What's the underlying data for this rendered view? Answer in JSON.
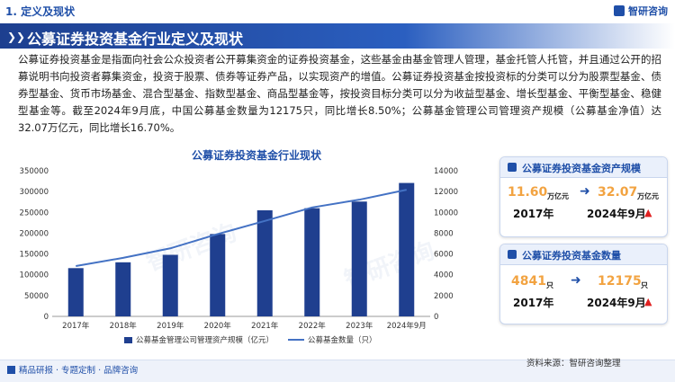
{
  "header": {
    "section_label": "1. 定义及现状",
    "brand": "智研咨询",
    "title": "公募证券投资基金行业定义及现状"
  },
  "paragraph": "公募证券投资基金是指面向社会公众投资者公开募集资金的证券投资基金，这些基金由基金管理人管理，基金托管人托管，并且通过公开的招募说明书向投资者募集资金，投资于股票、债券等证券产品，以实现资产的增值。公募证券投资基金按投资标的分类可以分为股票型基金、债券型基金、货币市场基金、混合型基金、指数型基金、商品型基金等，按投资目标分类可以分为收益型基金、增长型基金、平衡型基金、稳健型基金等。截至2024年9月底，中国公募基金数量为12175只，同比增长8.50%；公募基金管理公司管理资产规模（公募基金净值）达32.07万亿元，同比增长16.70%。",
  "chart_data": {
    "type": "bar",
    "title": "公募证券投资基金行业现状",
    "categories": [
      "2017年",
      "2018年",
      "2019年",
      "2020年",
      "2021年",
      "2022年",
      "2023年",
      "2024年9月"
    ],
    "series": [
      {
        "name": "公募基金管理公司管理资产规模（亿元）",
        "type": "bar",
        "axis": "left",
        "color": "#1f3f8f",
        "values": [
          116000,
          130000,
          148000,
          198000,
          255000,
          260000,
          276000,
          320700
        ]
      },
      {
        "name": "公募基金数量（只）",
        "type": "line",
        "axis": "right",
        "color": "#4472c4",
        "values": [
          4841,
          5626,
          6544,
          7913,
          9175,
          10474,
          11220,
          12175
        ]
      }
    ],
    "ylim": [
      0,
      350000
    ],
    "yticks": [
      0,
      50000,
      100000,
      150000,
      200000,
      250000,
      300000,
      350000
    ],
    "y2lim": [
      0,
      14000
    ],
    "y2ticks": [
      0,
      2000,
      4000,
      6000,
      8000,
      10000,
      12000,
      14000
    ],
    "legend_position": "bottom",
    "grid": false
  },
  "cards": [
    {
      "title": "公募证券投资基金资产规模",
      "from_value": "11.60",
      "from_unit": "万亿元",
      "from_label": "2017年",
      "to_value": "32.07",
      "to_unit": "万亿元",
      "to_label": "2024年9月"
    },
    {
      "title": "公募证券投资基金数量",
      "from_value": "4841",
      "from_unit": "只",
      "from_label": "2017年",
      "to_value": "12175",
      "to_unit": "只",
      "to_label": "2024年9月"
    }
  ],
  "footer": {
    "left": "精品研报 · 专题定制 · 品牌咨询",
    "source": "资料来源：智研咨询整理"
  },
  "watermark": "智研咨询",
  "colors": {
    "primary": "#1f4fa8",
    "bar": "#1f3f8f",
    "line": "#4472c4",
    "highlight": "#f2a341",
    "up": "#e02020"
  }
}
